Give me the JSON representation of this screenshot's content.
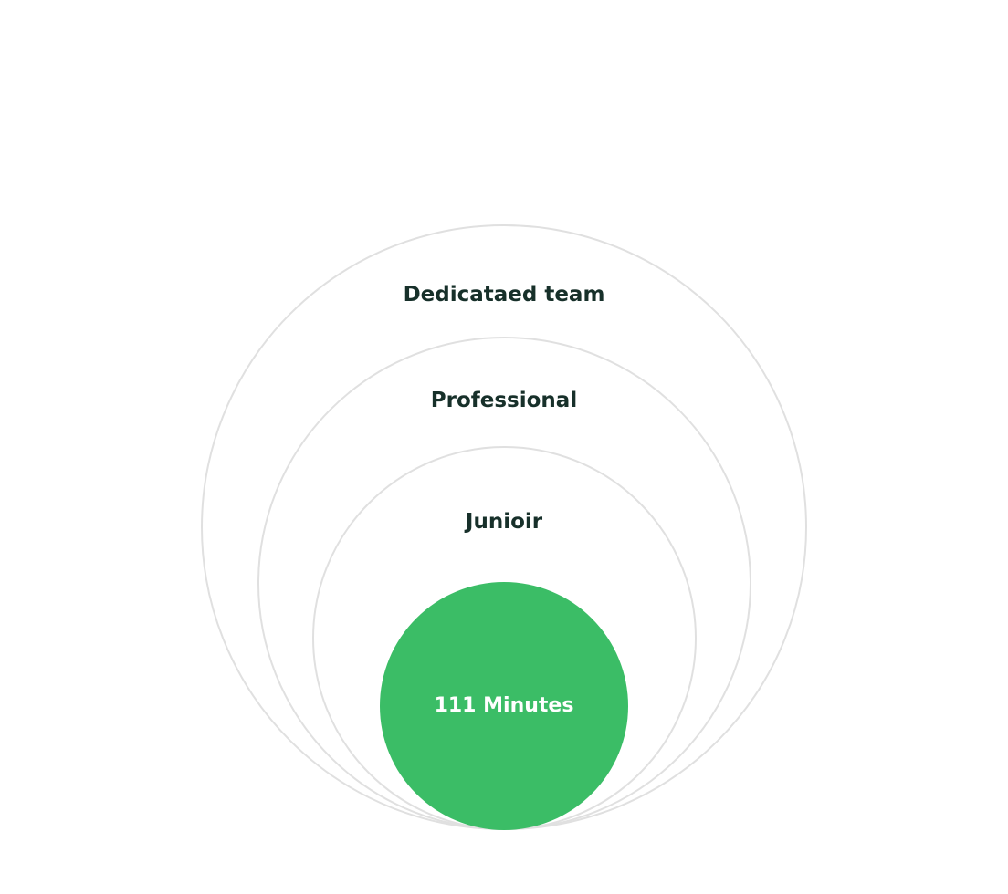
{
  "diagram": {
    "rings": [
      {
        "label": "Dedicataed team"
      },
      {
        "label": "Professional"
      },
      {
        "label": "Junioir"
      }
    ],
    "core": {
      "label": "111 Minutes"
    }
  },
  "colors": {
    "ring_stroke": "#e0e0e0",
    "label_text": "#17302a",
    "core_fill": "#3bbd66",
    "core_text": "#ffffff",
    "background": "#ffffff"
  }
}
